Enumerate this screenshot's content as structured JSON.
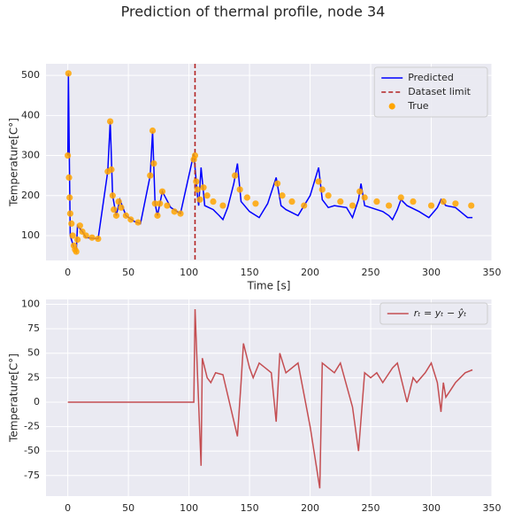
{
  "title": "Prediction of thermal profile, node 34",
  "chart_data": [
    {
      "type": "line",
      "x_label": "Time [s]",
      "y_label": "Temperature[C°]",
      "xlim": [
        -18,
        350
      ],
      "ylim": [
        38,
        529
      ],
      "xticks": [
        0,
        50,
        100,
        150,
        200,
        250,
        300,
        350
      ],
      "yticks": [
        100,
        200,
        300,
        400,
        500
      ],
      "grid": true,
      "legend": "upper right",
      "series": [
        {
          "name": "Predicted",
          "color": "#0000ff",
          "type": "line",
          "x": [
            0,
            0.5,
            2,
            5,
            7,
            8,
            12,
            15,
            25,
            33,
            35,
            37,
            40,
            43,
            48,
            55,
            60,
            68,
            70,
            72,
            74,
            78,
            85,
            93,
            104,
            107,
            108,
            110,
            113,
            120,
            125,
            128,
            132,
            137,
            140,
            143,
            150,
            158,
            165,
            172,
            176,
            180,
            190,
            200,
            207,
            210,
            215,
            220,
            230,
            235,
            240,
            242,
            245,
            250,
            260,
            265,
            268,
            272,
            275,
            280,
            290,
            298,
            305,
            308,
            312,
            320,
            330,
            334
          ],
          "values": [
            300,
            505,
            100,
            70,
            60,
            125,
            110,
            95,
            92,
            260,
            385,
            200,
            150,
            190,
            150,
            135,
            130,
            250,
            360,
            180,
            150,
            210,
            170,
            155,
            305,
            200,
            175,
            270,
            175,
            165,
            150,
            140,
            170,
            230,
            280,
            185,
            160,
            145,
            180,
            245,
            175,
            165,
            150,
            200,
            270,
            190,
            170,
            175,
            170,
            145,
            190,
            230,
            175,
            170,
            160,
            150,
            140,
            165,
            190,
            175,
            160,
            145,
            170,
            190,
            175,
            170,
            145,
            145
          ]
        },
        {
          "name": "Dataset limit",
          "color": "#b22222",
          "type": "vline",
          "x": 105
        },
        {
          "name": "True",
          "color": "#ffa500",
          "type": "scatter",
          "x": [
            0,
            0.5,
            1,
            1.5,
            2,
            3,
            4,
            5,
            6,
            7,
            8,
            10,
            12,
            15,
            20,
            25,
            33,
            35,
            36,
            37,
            38,
            40,
            42,
            44,
            48,
            52,
            58,
            68,
            70,
            71,
            72,
            74,
            76,
            78,
            82,
            88,
            93,
            104,
            105,
            106,
            107,
            109,
            112,
            115,
            120,
            128,
            138,
            142,
            148,
            155,
            173,
            177,
            185,
            195,
            207,
            210,
            215,
            225,
            235,
            241,
            245,
            255,
            265,
            275,
            285,
            300,
            310,
            320,
            333
          ],
          "values": [
            300,
            505,
            245,
            195,
            155,
            130,
            100,
            75,
            65,
            60,
            90,
            125,
            110,
            100,
            95,
            92,
            260,
            385,
            265,
            200,
            165,
            150,
            185,
            170,
            150,
            140,
            133,
            250,
            362,
            280,
            180,
            150,
            180,
            210,
            175,
            160,
            155,
            290,
            300,
            235,
            215,
            190,
            220,
            200,
            185,
            175,
            250,
            215,
            195,
            180,
            230,
            200,
            185,
            175,
            235,
            215,
            200,
            185,
            175,
            210,
            195,
            185,
            175,
            195,
            185,
            175,
            185,
            180,
            175
          ]
        }
      ]
    },
    {
      "type": "line",
      "y_label": "Temperature[C°]",
      "xlim": [
        -18,
        350
      ],
      "ylim": [
        -96,
        105
      ],
      "xticks": [
        0,
        50,
        100,
        150,
        200,
        250,
        300,
        350
      ],
      "yticks": [
        -75,
        -50,
        -25,
        0,
        25,
        50,
        75,
        100
      ],
      "grid": true,
      "legend": "upper right",
      "series": [
        {
          "name": "rₜ = yₜ − ŷₜ",
          "color": "#c44e52",
          "type": "line",
          "x": [
            0,
            104,
            105,
            107,
            110,
            111,
            115,
            118,
            122,
            128,
            140,
            143,
            145,
            150,
            153,
            158,
            163,
            168,
            172,
            175,
            180,
            190,
            200,
            208,
            210,
            215,
            220,
            225,
            235,
            240,
            245,
            250,
            255,
            260,
            268,
            272,
            280,
            285,
            288,
            295,
            300,
            305,
            308,
            310,
            312,
            320,
            328,
            334
          ],
          "values": [
            0,
            0,
            95,
            30,
            -65,
            45,
            25,
            20,
            30,
            28,
            -35,
            20,
            60,
            35,
            25,
            40,
            35,
            30,
            -20,
            50,
            30,
            40,
            -25,
            -88,
            40,
            35,
            30,
            40,
            -5,
            -50,
            30,
            25,
            30,
            20,
            35,
            40,
            0,
            25,
            20,
            30,
            40,
            20,
            -10,
            20,
            5,
            20,
            30,
            33
          ]
        }
      ]
    }
  ]
}
